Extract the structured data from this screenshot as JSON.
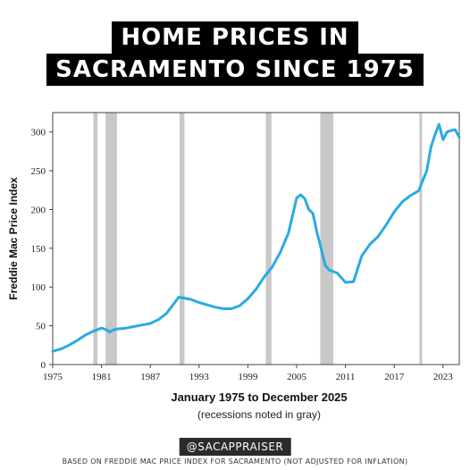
{
  "title": {
    "line1": "HOME PRICES IN",
    "line2": "SACRAMENTO SINCE 1975"
  },
  "handle": "@SACAPPRAISER",
  "footer": "BASED ON FREDDIE MAC PRICE INDEX FOR SACRAMENTO (NOT ADJUSTED FOR INFLATION)",
  "chart_data": {
    "type": "line",
    "ylabel": "Freddie Mac Price Index",
    "xlabel": "January 1975 to December 2025",
    "xlabel_note": "(recessions noted in gray)",
    "xlim": [
      1975,
      2025
    ],
    "ylim": [
      0,
      325
    ],
    "x_ticks": [
      1975,
      1981,
      1987,
      1993,
      1999,
      2005,
      2011,
      2017,
      2023
    ],
    "y_ticks": [
      0,
      50,
      100,
      150,
      200,
      250,
      300
    ],
    "grid": false,
    "line_color": "#29abe2",
    "recession_color": "#c8c8c8",
    "recessions": [
      [
        1980.0,
        1980.5
      ],
      [
        1981.5,
        1982.9
      ],
      [
        1990.6,
        1991.2
      ],
      [
        2001.2,
        2001.9
      ],
      [
        2007.9,
        2009.5
      ],
      [
        2020.1,
        2020.4
      ]
    ],
    "series": [
      {
        "x": [
          1975.0,
          1976.0,
          1977.0,
          1978.0,
          1979.0,
          1980.0,
          1981.0,
          1981.6,
          1982.0,
          1982.5,
          1983.0,
          1984.0,
          1985.0,
          1986.0,
          1987.0,
          1988.0,
          1989.0,
          1990.0,
          1990.5,
          1991.0,
          1992.0,
          1993.0,
          1994.0,
          1995.0,
          1996.0,
          1997.0,
          1998.0,
          1999.0,
          2000.0,
          2001.0,
          2002.0,
          2003.0,
          2004.0,
          2005.0,
          2005.5,
          2006.0,
          2006.5,
          2007.0,
          2007.5,
          2008.0,
          2008.5,
          2009.0,
          2009.5,
          2010.0,
          2011.0,
          2012.0,
          2013.0,
          2014.0,
          2015.0,
          2016.0,
          2017.0,
          2018.0,
          2019.0,
          2020.0,
          2021.0,
          2021.5,
          2022.0,
          2022.5,
          2023.0,
          2023.5,
          2024.0,
          2024.5,
          2025.0
        ],
        "y": [
          17,
          20,
          25,
          31,
          38,
          43,
          47,
          45,
          42,
          45,
          46,
          47,
          49,
          51,
          53,
          58,
          66,
          80,
          87,
          86,
          84,
          80,
          77,
          74,
          72,
          72,
          76,
          85,
          97,
          113,
          126,
          145,
          170,
          215,
          219,
          214,
          200,
          195,
          170,
          150,
          128,
          122,
          120,
          118,
          106,
          107,
          140,
          155,
          165,
          180,
          197,
          210,
          218,
          224,
          250,
          280,
          296,
          310,
          290,
          300,
          302,
          303,
          293
        ]
      }
    ]
  }
}
